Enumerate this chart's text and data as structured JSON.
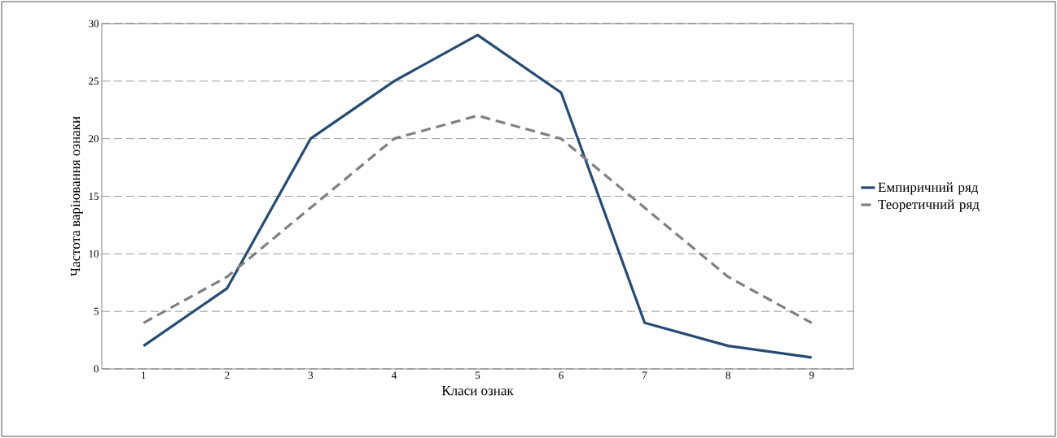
{
  "chart_data": {
    "type": "line",
    "xlabel": "Класи ознак",
    "ylabel": "Частота варіювання ознаки",
    "categories": [
      "1",
      "2",
      "3",
      "4",
      "5",
      "6",
      "7",
      "8",
      "9"
    ],
    "series": [
      {
        "name": "Емпиричний ряд",
        "color": "#264b73",
        "values": [
          2,
          7,
          20,
          25,
          29,
          24,
          4,
          2,
          1
        ],
        "line_style": "solid"
      },
      {
        "name": "Теоретичний ряд",
        "color": "#808080",
        "values": [
          4,
          8,
          14,
          20,
          22,
          20,
          14,
          8,
          4
        ],
        "line_style": "dashed"
      }
    ],
    "ylim": [
      0,
      30
    ],
    "yticks": [
      0,
      5,
      10,
      15,
      20,
      25,
      30
    ],
    "grid": "y",
    "legend": "right"
  }
}
